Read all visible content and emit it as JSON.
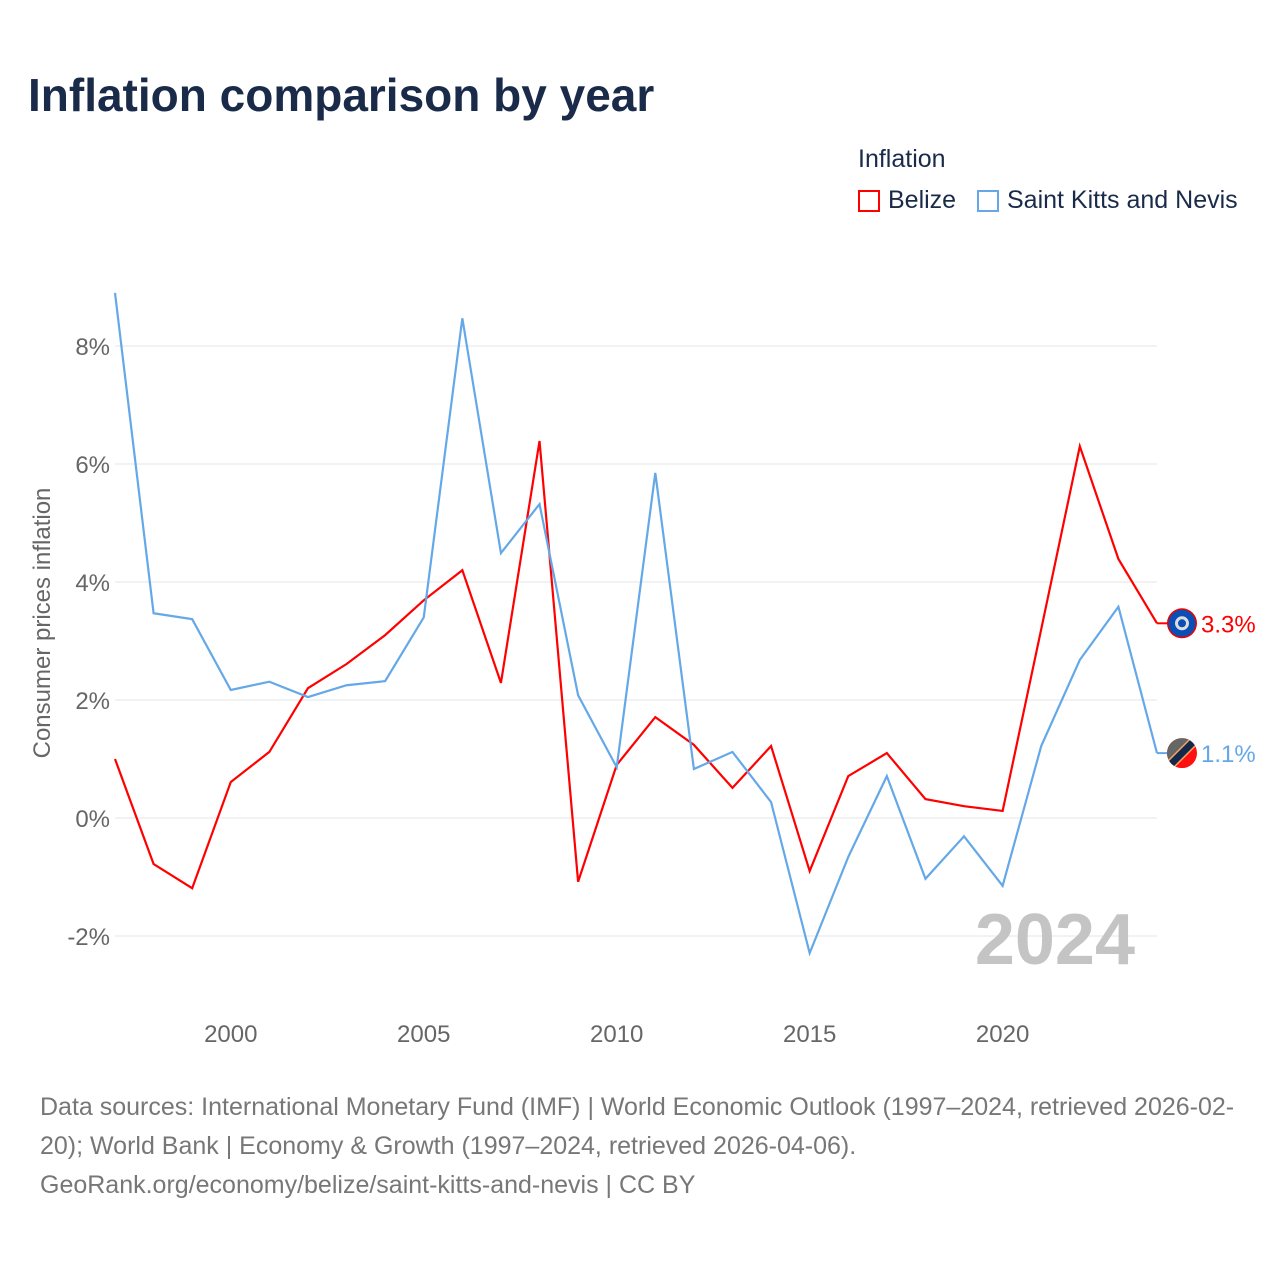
{
  "chart_data": {
    "type": "line",
    "title": "Inflation comparison by year",
    "ylabel": "Consumer prices inflation",
    "xlabel": "",
    "legend_title": "Inflation",
    "legend_position": "top-right",
    "watermark_year": "2024",
    "x": [
      1997,
      1998,
      1999,
      2000,
      2001,
      2002,
      2003,
      2004,
      2005,
      2006,
      2007,
      2008,
      2009,
      2010,
      2011,
      2012,
      2013,
      2014,
      2015,
      2016,
      2017,
      2018,
      2019,
      2020,
      2021,
      2022,
      2023,
      2024
    ],
    "xlim": [
      1997,
      2024
    ],
    "ylim": [
      -3,
      9
    ],
    "x_ticks": [
      2000,
      2005,
      2010,
      2015,
      2020
    ],
    "y_ticks": [
      -2,
      0,
      2,
      4,
      6,
      8
    ],
    "y_tick_labels": [
      "-2%",
      "0%",
      "2%",
      "4%",
      "6%",
      "8%"
    ],
    "grid": true,
    "series": [
      {
        "name": "Belize",
        "color": "#ff0000",
        "end_label": "3.3%",
        "values": [
          1.0,
          -0.78,
          -1.19,
          0.61,
          1.12,
          2.2,
          2.61,
          3.1,
          3.69,
          4.2,
          2.29,
          6.39,
          -1.08,
          0.9,
          1.71,
          1.24,
          0.51,
          1.22,
          -0.9,
          0.71,
          1.1,
          0.32,
          0.2,
          0.12,
          3.2,
          6.3,
          4.39,
          3.3
        ]
      },
      {
        "name": "Saint Kitts and Nevis",
        "color": "#64a8e8",
        "end_label": "1.1%",
        "values": [
          8.9,
          3.47,
          3.37,
          2.17,
          2.31,
          2.05,
          2.25,
          2.32,
          3.4,
          8.47,
          4.49,
          5.32,
          2.08,
          0.86,
          5.85,
          0.83,
          1.12,
          0.27,
          -2.29,
          -0.66,
          0.71,
          -1.03,
          -0.31,
          -1.15,
          1.22,
          2.68,
          3.58,
          1.1
        ]
      }
    ]
  },
  "source": "Data sources: International Monetary Fund (IMF) | World Economic Outlook (1997–2024, retrieved 2026-02-20); World Bank | Economy & Growth (1997–2024, retrieved 2026-04-06). GeoRank.org/economy/belize/saint-kitts-and-nevis | CC BY"
}
